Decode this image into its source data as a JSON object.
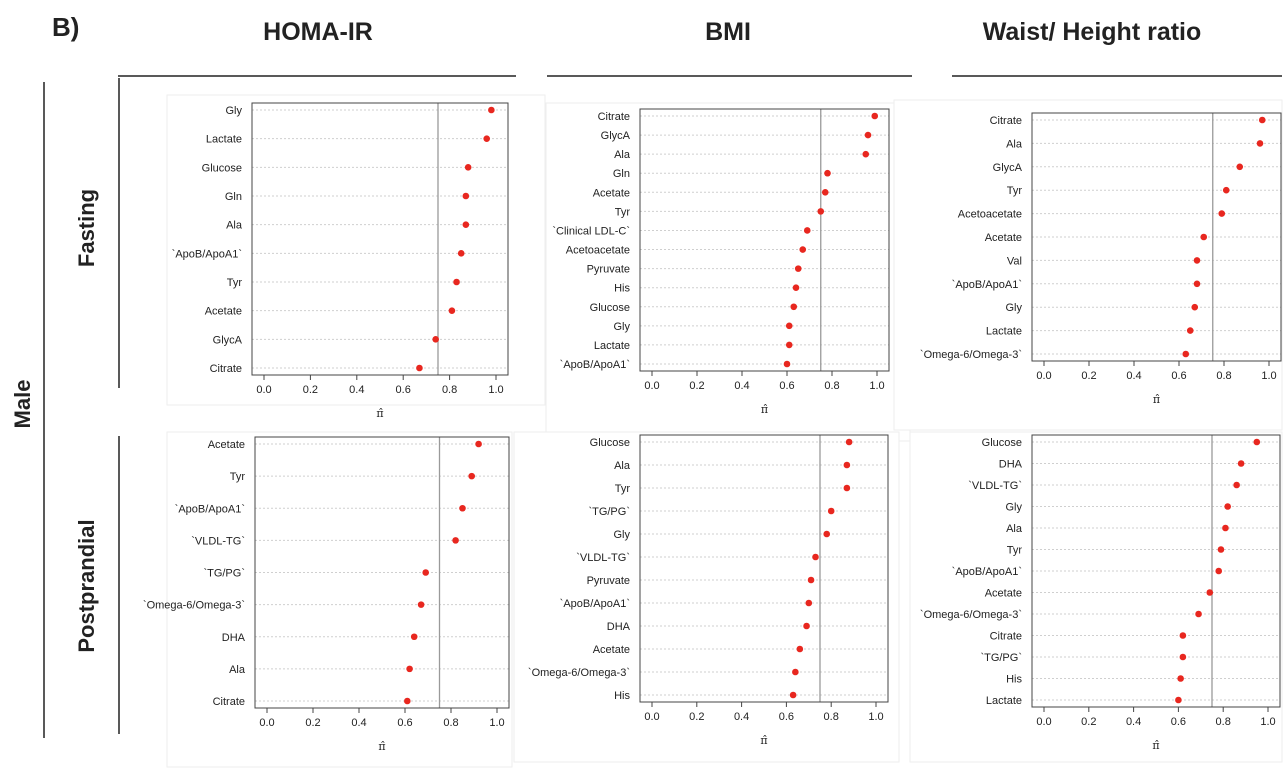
{
  "panel_label": "B)",
  "column_titles": [
    "HOMA-IR",
    "BMI",
    "Waist/ Height ratio"
  ],
  "row_group_label": "Male",
  "row_labels": [
    "Fasting",
    "Postprandial"
  ],
  "colors": {
    "point": "#e8271f",
    "reference_line": "#9a9a9a",
    "grid": "#cfcfcf",
    "frame": "#444444"
  },
  "chart_data": [
    {
      "type": "scatter",
      "column": "HOMA-IR",
      "row": "Fasting",
      "xlabel": "π̂",
      "xlim": [
        0,
        1.0
      ],
      "x_ticks": [
        "0.0",
        "0.2",
        "0.4",
        "0.6",
        "0.8",
        "1.0"
      ],
      "reference_line_x": 0.75,
      "categories": [
        "Gly",
        "Lactate",
        "Glucose",
        "Gln",
        "Ala",
        "`ApoB/ApoA1`",
        "Tyr",
        "Acetate",
        "GlycA",
        "Citrate"
      ],
      "values": [
        0.98,
        0.96,
        0.88,
        0.87,
        0.87,
        0.85,
        0.83,
        0.81,
        0.74,
        0.67
      ]
    },
    {
      "type": "scatter",
      "column": "BMI",
      "row": "Fasting",
      "xlabel": "π̂",
      "xlim": [
        0,
        1.0
      ],
      "x_ticks": [
        "0.0",
        "0.2",
        "0.4",
        "0.6",
        "0.8",
        "1.0"
      ],
      "reference_line_x": 0.75,
      "categories": [
        "Citrate",
        "GlycA",
        "Ala",
        "Gln",
        "Acetate",
        "Tyr",
        "`Clinical LDL-C`",
        "Acetoacetate",
        "Pyruvate",
        "His",
        "Glucose",
        "Gly",
        "Lactate",
        "`ApoB/ApoA1`"
      ],
      "values": [
        0.99,
        0.96,
        0.95,
        0.78,
        0.77,
        0.75,
        0.69,
        0.67,
        0.65,
        0.64,
        0.63,
        0.61,
        0.61,
        0.6
      ]
    },
    {
      "type": "scatter",
      "column": "Waist/ Height ratio",
      "row": "Fasting",
      "xlabel": "π̂",
      "xlim": [
        0,
        1.0
      ],
      "x_ticks": [
        "0.0",
        "0.2",
        "0.4",
        "0.6",
        "0.8",
        "1.0"
      ],
      "reference_line_x": 0.75,
      "categories": [
        "Citrate",
        "Ala",
        "GlycA",
        "Tyr",
        "Acetoacetate",
        "Acetate",
        "Val",
        "`ApoB/ApoA1`",
        "Gly",
        "Lactate",
        "`Omega-6/Omega-3`"
      ],
      "values": [
        0.97,
        0.96,
        0.87,
        0.81,
        0.79,
        0.71,
        0.68,
        0.68,
        0.67,
        0.65,
        0.63
      ]
    },
    {
      "type": "scatter",
      "column": "HOMA-IR",
      "row": "Postprandial",
      "xlabel": "π̂",
      "xlim": [
        0,
        1.0
      ],
      "x_ticks": [
        "0.0",
        "0.2",
        "0.4",
        "0.6",
        "0.8",
        "1.0"
      ],
      "reference_line_x": 0.75,
      "categories": [
        "Acetate",
        "Tyr",
        "`ApoB/ApoA1`",
        "`VLDL-TG`",
        "`TG/PG`",
        "`Omega-6/Omega-3`",
        "DHA",
        "Ala",
        "Citrate"
      ],
      "values": [
        0.92,
        0.89,
        0.85,
        0.82,
        0.69,
        0.67,
        0.64,
        0.62,
        0.61
      ]
    },
    {
      "type": "scatter",
      "column": "BMI",
      "row": "Postprandial",
      "xlabel": "π̂",
      "xlim": [
        0,
        1.0
      ],
      "x_ticks": [
        "0.0",
        "0.2",
        "0.4",
        "0.6",
        "0.8",
        "1.0"
      ],
      "reference_line_x": 0.75,
      "categories": [
        "Glucose",
        "Ala",
        "Tyr",
        "`TG/PG`",
        "Gly",
        "`VLDL-TG`",
        "Pyruvate",
        "`ApoB/ApoA1`",
        "DHA",
        "Acetate",
        "`Omega-6/Omega-3`",
        "His"
      ],
      "values": [
        0.88,
        0.87,
        0.87,
        0.8,
        0.78,
        0.73,
        0.71,
        0.7,
        0.69,
        0.66,
        0.64,
        0.63
      ]
    },
    {
      "type": "scatter",
      "column": "Waist/ Height ratio",
      "row": "Postprandial",
      "xlabel": "π̂",
      "xlim": [
        0,
        1.0
      ],
      "x_ticks": [
        "0.0",
        "0.2",
        "0.4",
        "0.6",
        "0.8",
        "1.0"
      ],
      "reference_line_x": 0.75,
      "categories": [
        "Glucose",
        "DHA",
        "`VLDL-TG`",
        "Gly",
        "Ala",
        "Tyr",
        "`ApoB/ApoA1`",
        "Acetate",
        "`Omega-6/Omega-3`",
        "Citrate",
        "`TG/PG`",
        "His",
        "Lactate"
      ],
      "values": [
        0.95,
        0.88,
        0.86,
        0.82,
        0.81,
        0.79,
        0.78,
        0.74,
        0.69,
        0.62,
        0.62,
        0.61,
        0.6
      ]
    }
  ]
}
